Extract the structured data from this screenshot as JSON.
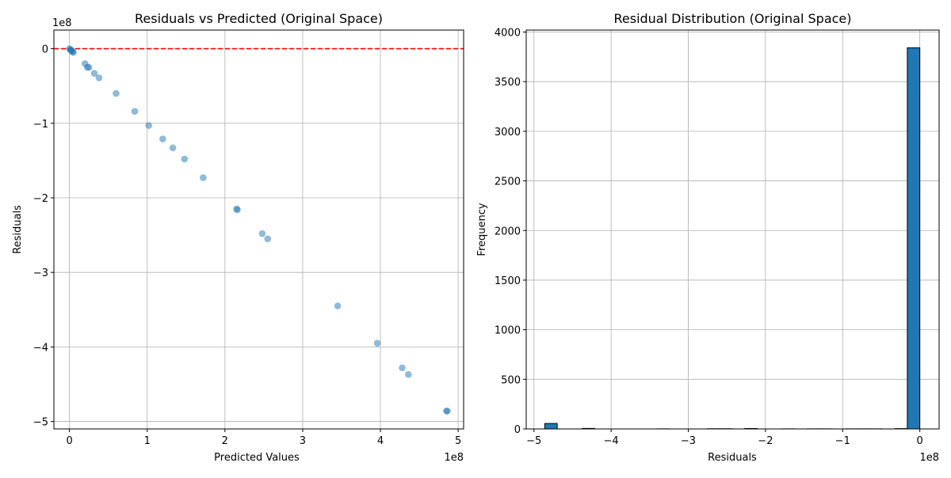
{
  "chart_data": [
    {
      "type": "scatter",
      "title": "Residuals vs Predicted (Original Space)",
      "xlabel": "Predicted Values",
      "ylabel": "Residuals",
      "x_offset_label": "1e8",
      "y_offset_label": "1e8",
      "xlim": [
        -0.2,
        5.07
      ],
      "ylim": [
        -5.1,
        0.25
      ],
      "xticks": [
        0,
        1,
        2,
        3,
        4,
        5
      ],
      "xtick_labels": [
        "0",
        "1",
        "2",
        "3",
        "4",
        "5"
      ],
      "yticks": [
        0,
        -1,
        -2,
        -3,
        -4,
        -5
      ],
      "ytick_labels": [
        "0",
        "−1",
        "−2",
        "−3",
        "−4",
        "−5"
      ],
      "grid": true,
      "point_color": "#1f77b4",
      "point_alpha": 0.5,
      "reference_line": {
        "y": 0,
        "color": "#ff0000",
        "style": "dashed"
      },
      "points": [
        {
          "x": 0.0,
          "y": 0.0
        },
        {
          "x": 0.01,
          "y": -0.01
        },
        {
          "x": 0.02,
          "y": -0.02
        },
        {
          "x": 0.03,
          "y": -0.03
        },
        {
          "x": 0.04,
          "y": -0.04
        },
        {
          "x": 0.05,
          "y": -0.05
        },
        {
          "x": 0.2,
          "y": -0.2
        },
        {
          "x": 0.23,
          "y": -0.25
        },
        {
          "x": 0.25,
          "y": -0.25
        },
        {
          "x": 0.32,
          "y": -0.33
        },
        {
          "x": 0.38,
          "y": -0.39
        },
        {
          "x": 0.6,
          "y": -0.6
        },
        {
          "x": 0.84,
          "y": -0.84
        },
        {
          "x": 1.02,
          "y": -1.03
        },
        {
          "x": 1.2,
          "y": -1.21
        },
        {
          "x": 1.33,
          "y": -1.33
        },
        {
          "x": 1.48,
          "y": -1.48
        },
        {
          "x": 1.72,
          "y": -1.73
        },
        {
          "x": 2.15,
          "y": -2.15
        },
        {
          "x": 2.16,
          "y": -2.16
        },
        {
          "x": 2.48,
          "y": -2.48
        },
        {
          "x": 2.55,
          "y": -2.55
        },
        {
          "x": 3.45,
          "y": -3.45
        },
        {
          "x": 3.96,
          "y": -3.95
        },
        {
          "x": 4.28,
          "y": -4.28
        },
        {
          "x": 4.36,
          "y": -4.37
        },
        {
          "x": 4.85,
          "y": -4.86
        },
        {
          "x": 4.86,
          "y": -4.86
        }
      ]
    },
    {
      "type": "bar",
      "title": "Residual Distribution (Original Space)",
      "xlabel": "Residuals",
      "ylabel": "Frequency",
      "x_offset_label": "1e8",
      "xlim": [
        -5.1,
        0.25
      ],
      "ylim": [
        0,
        4020
      ],
      "xticks": [
        -5,
        -4,
        -3,
        -2,
        -1,
        0
      ],
      "xtick_labels": [
        "−5",
        "−4",
        "−3",
        "−2",
        "−1",
        "0"
      ],
      "yticks": [
        0,
        500,
        1000,
        1500,
        2000,
        2500,
        3000,
        3500,
        4000
      ],
      "ytick_labels": [
        "0",
        "500",
        "1000",
        "1500",
        "2000",
        "2500",
        "3000",
        "3500",
        "4000"
      ],
      "grid": true,
      "bar_color": "#1f77b4",
      "bar_edge_color": "#000000",
      "bin_edges": [
        -4.86,
        -4.698,
        -4.536,
        -4.374,
        -4.212,
        -4.05,
        -3.888,
        -3.726,
        -3.564,
        -3.402,
        -3.24,
        -3.078,
        -2.916,
        -2.754,
        -2.592,
        -2.43,
        -2.268,
        -2.106,
        -1.944,
        -1.782,
        -1.62,
        -1.458,
        -1.296,
        -1.134,
        -0.972,
        -0.81,
        -0.648,
        -0.486,
        -0.324,
        -0.162,
        0.0
      ],
      "values": [
        55,
        0,
        0,
        5,
        0,
        0,
        0,
        0,
        0,
        1,
        0,
        0,
        0,
        2,
        2,
        0,
        4,
        0,
        0,
        1,
        0,
        1,
        1,
        0,
        1,
        1,
        1,
        0,
        3,
        3842
      ]
    }
  ]
}
